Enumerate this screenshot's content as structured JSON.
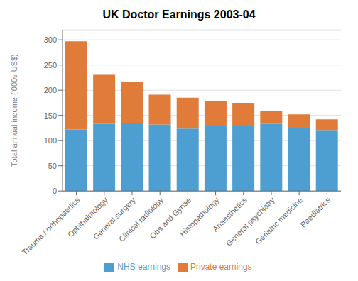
{
  "chart_data": {
    "type": "bar",
    "title": "UK Doctor Earnings 2003-04",
    "ylabel": "Total annual income ('000s US$)",
    "categories": [
      "Trauma / orthopaedics",
      "Ophthalmology",
      "General surgery",
      "Clinical radiology",
      "Obs and Gynae",
      "Histopathology",
      "Anaesthetics",
      "General psychiatry",
      "Geriatric medicine",
      "Paediatrics"
    ],
    "series": [
      {
        "name": "NHS earnings",
        "color": "#4e9fd1",
        "values": [
          122,
          133,
          135,
          132,
          124,
          130,
          130,
          133,
          125,
          121
        ]
      },
      {
        "name": "Private earnings",
        "color": "#e07b39",
        "values": [
          175,
          99,
          81,
          59,
          61,
          48,
          45,
          26,
          27,
          21
        ]
      }
    ],
    "stacked": true,
    "ylim": [
      0,
      320
    ],
    "yticks": [
      0,
      50,
      100,
      150,
      200,
      250,
      300
    ],
    "grid": true,
    "legend": "bottom"
  }
}
